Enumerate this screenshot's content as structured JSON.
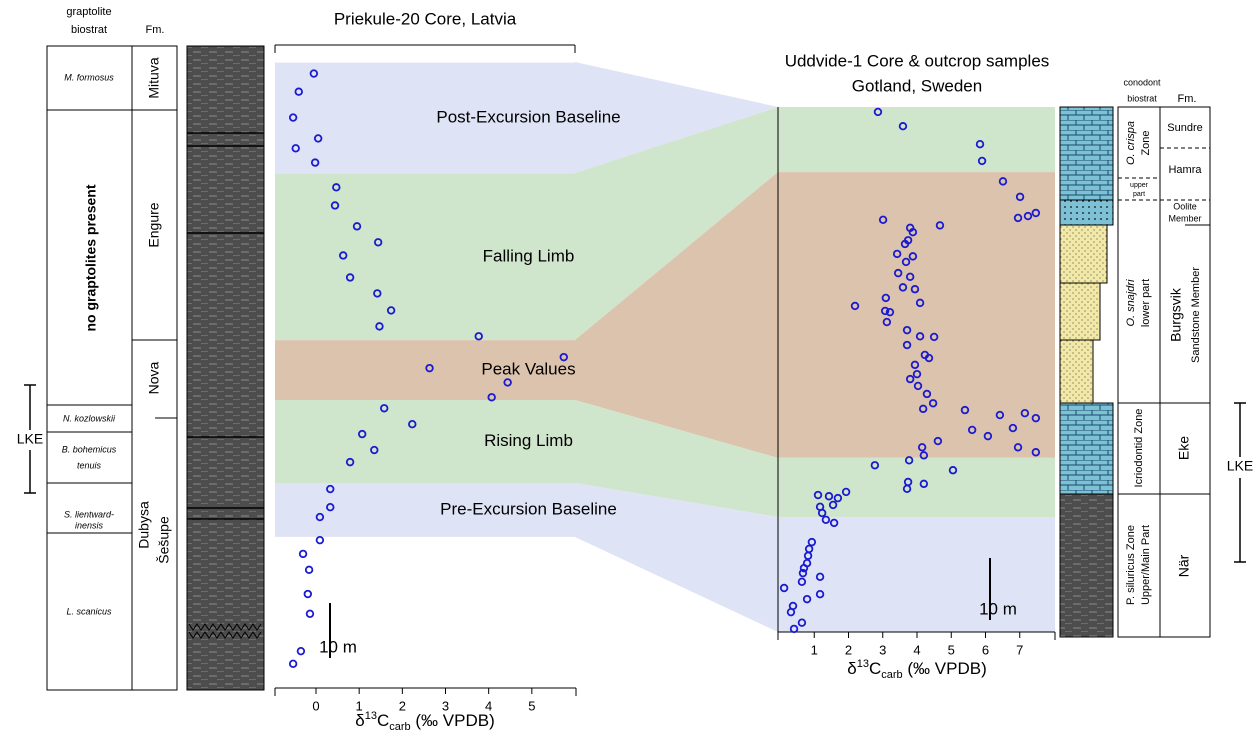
{
  "chart_data": [
    {
      "type": "scatter",
      "title": "Priekule-20 Core, Latvia",
      "x_label_parts": [
        "δ",
        "13",
        "C",
        "carb",
        " (‰ VPDB)"
      ],
      "xlim": [
        -0.95,
        6.0
      ],
      "xticks": [
        0,
        1,
        2,
        3,
        4,
        5
      ],
      "ylim": [
        0,
        117
      ],
      "series": [
        {
          "color": "#1a1ad0",
          "x": [
            -0.05,
            -0.4,
            -0.53,
            0.05,
            -0.47,
            -0.02,
            0.47,
            0.44,
            0.95,
            1.44,
            0.63,
            0.79,
            1.42,
            1.74,
            1.47,
            3.77,
            5.74,
            2.63,
            4.44,
            4.07,
            1.58,
            2.23,
            1.07,
            1.35,
            0.79,
            0.33,
            0.33,
            0.09,
            0.09,
            -0.3,
            -0.16,
            -0.19,
            -0.14,
            -0.35,
            -0.53
          ],
          "values": [
            111.8,
            108.5,
            103.8,
            100,
            98.2,
            95.6,
            91.1,
            87.8,
            84,
            81.1,
            78.7,
            74.7,
            71.8,
            68.7,
            65.8,
            64,
            60.2,
            58.2,
            55.6,
            52.9,
            50.9,
            48,
            46.2,
            43.3,
            41.1,
            36.2,
            32.9,
            31.1,
            26.9,
            24.4,
            21.5,
            17.1,
            13.5,
            6.7,
            4.4
          ]
        }
      ],
      "bands": [
        {
          "label": "Post-Excursion Baseline",
          "ylim": [
            93.6,
            113.8
          ],
          "color": "#dfe3f6"
        },
        {
          "label": "Falling Limb",
          "ylim": [
            63.3,
            93.6
          ],
          "color": "#cfe6cd"
        },
        {
          "label": "Peak Values",
          "ylim": [
            52.4,
            63.3
          ],
          "color": "#dcc3ad"
        },
        {
          "label": "Rising Limb",
          "ylim": [
            37.3,
            52.4
          ],
          "color": "#cfe6cd"
        },
        {
          "label": "Pre-Excursion Baseline",
          "ylim": [
            27.5,
            37.3
          ],
          "color": "#dfe3f6"
        }
      ],
      "scale_bar": {
        "label": "10 m",
        "value": 10
      }
    },
    {
      "type": "scatter",
      "title": [
        "Uddvide-1 Core & outcrop samples",
        "Gotland, Sweden"
      ],
      "x_label_parts": [
        "δ",
        "13",
        "C",
        "carb",
        " (‰ VPDB)"
      ],
      "xlim": [
        0,
        8
      ],
      "xticks": [
        1,
        2,
        3,
        4,
        5,
        6,
        7
      ],
      "ylim": [
        0,
        84.7
      ],
      "series": [
        {
          "color": "#1a1ad0",
          "x": [
            2.86,
            3.59,
            5.84,
            5.9,
            6.51,
            7.01,
            7.47,
            7.24,
            6.95,
            3.01,
            3.8,
            3.88,
            3.74,
            3.65,
            4.67,
            3.42,
            3.88,
            3.68,
            3.45,
            3.8,
            3.59,
            3.94,
            2.19,
            3.09,
            3.21,
            3.12,
            3.07,
            4.09,
            3.71,
            4.09,
            4.5,
            3.71,
            4.23,
            4.35,
            3.94,
            4.0,
            3.8,
            4.03,
            4.29,
            4.47,
            4.18,
            5.4,
            6.42,
            7.15,
            7.47,
            5.61,
            6.07,
            6.8,
            4.61,
            6.95,
            7.47,
            2.77,
            3.77,
            5.05,
            4.15,
            4.2,
            3.74,
            3.71,
            4.2,
            1.93,
            1.11,
            1.43,
            1.69,
            1.55,
            1.17,
            1.23,
            1.34,
            1.58,
            0.93,
            0.85,
            0.82,
            0.79,
            0.7,
            0.67,
            1.17,
            0.64,
            0.12,
            0.79,
            1.17,
            0.38,
            0.32,
            0.64,
            0.41
          ],
          "values": [
            83.9,
            81.6,
            78.7,
            76,
            72.7,
            70.2,
            67.6,
            67.1,
            66.8,
            66.5,
            65.2,
            64.5,
            63.2,
            62.6,
            65.6,
            61,
            60.6,
            59.7,
            57.9,
            57.3,
            55.6,
            55.3,
            52.6,
            53.9,
            51.6,
            50,
            51.8,
            53.1,
            48.7,
            47.7,
            47.6,
            46.3,
            44.7,
            44.2,
            43.1,
            41.6,
            40.8,
            39.7,
            38.4,
            36.9,
            36,
            35.8,
            35,
            35.3,
            34.5,
            32.6,
            31.6,
            32.9,
            30.8,
            29.8,
            29,
            26.9,
            27.7,
            26.1,
            29.8,
            28.5,
            24.2,
            23.1,
            23.9,
            22.6,
            22.1,
            21.9,
            21.6,
            20.5,
            20.2,
            19.2,
            18.1,
            17.6,
            14.5,
            13.4,
            12.3,
            11.1,
            10.3,
            9.5,
            8.9,
            8.1,
            7.1,
            5.3,
            6.1,
            4.2,
            3.2,
            1.5,
            0.5
          ]
        }
      ],
      "bands": [
        {
          "ylim": [
            74.2,
            84.7
          ],
          "color": "#cfe6cd"
        },
        {
          "ylim": [
            28.1,
            74.2
          ],
          "color": "#dcc3ad"
        },
        {
          "ylim": [
            18.5,
            28.1
          ],
          "color": "#cfe6cd"
        },
        {
          "ylim": [
            0,
            18.5
          ],
          "color": "#dfe3f6"
        }
      ],
      "scale_bar": {
        "label": "10 m",
        "value": 10
      }
    }
  ],
  "left_column": {
    "biostrat_header": [
      "graptolite",
      "biostrat"
    ],
    "fm_header": "Fm.",
    "zones": [
      [
        "M. formosus"
      ],
      [
        "no graptolites present"
      ],
      [
        "N. kozlowskii"
      ],
      [
        "B. bohemicus",
        "tenuis"
      ],
      [
        "S. lientward-",
        "inensis"
      ],
      [
        "L. scanicus"
      ]
    ],
    "formations": [
      "Mituva",
      "Engure",
      "Nova",
      "Dubysa",
      "Šešupe"
    ],
    "event": "LKE"
  },
  "right_column": {
    "biostrat_header": [
      "conodont",
      "biostrat"
    ],
    "fm_header": "Fm.",
    "zones": [
      [
        "O. crispa",
        "Zone"
      ],
      [
        "upper",
        "part"
      ],
      [
        "O. snajdri",
        "lower part"
      ],
      [
        "Icriodontid Zone"
      ],
      [
        "P. siluricus Zone",
        "Upper/Main Part"
      ]
    ],
    "formations": [
      [
        "Sundre"
      ],
      [
        "Hamra"
      ],
      [
        "Oolite",
        "Member"
      ],
      [
        "Burgsvik",
        "Sandstone Member"
      ],
      [
        "Eke"
      ],
      [
        "När"
      ]
    ],
    "event": "LKE"
  }
}
